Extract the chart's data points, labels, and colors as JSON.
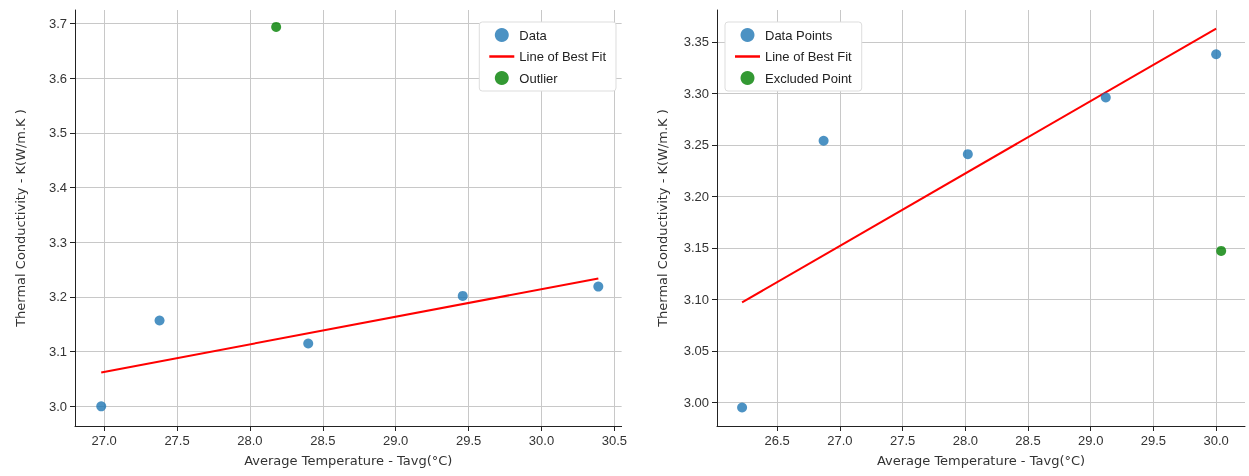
{
  "chart_data": [
    {
      "type": "scatter",
      "xlabel": "Average Temperature - Tavg(°C)",
      "ylabel": "Thermal Conductivity - K(W/m.K )",
      "xlim": [
        26.8,
        30.55
      ],
      "ylim": [
        2.964,
        3.725
      ],
      "xticks": [
        {
          "value": 27,
          "label": "27.0"
        },
        {
          "value": 27.5,
          "label": "27.5"
        },
        {
          "value": 28,
          "label": "28.0"
        },
        {
          "value": 28.5,
          "label": "28.5"
        },
        {
          "value": 29,
          "label": "29.0"
        },
        {
          "value": 29.5,
          "label": "29.5"
        },
        {
          "value": 30,
          "label": "30.0"
        },
        {
          "value": 30.5,
          "label": "30.5"
        }
      ],
      "yticks": [
        {
          "value": 3,
          "label": "3.0"
        },
        3.1,
        3.2,
        3.3,
        3.4,
        3.5,
        3.6,
        3.7
      ],
      "grid": true,
      "legend": "top right",
      "marker": "circle",
      "series": [
        {
          "name": "Data",
          "color": "#1f77b4",
          "x": [
            26.98,
            27.38,
            28.4,
            29.46,
            30.39
          ],
          "values": [
            3.0,
            3.157,
            3.115,
            3.202,
            3.219
          ]
        },
        {
          "name": "Line of Best Fit",
          "type": "line",
          "marker": "none",
          "color": "#ff0000",
          "x": [
            26.98,
            30.39
          ],
          "values": [
            3.062,
            3.234
          ]
        },
        {
          "name": "Outlier",
          "color": "#008000",
          "x": [
            28.18
          ],
          "values": [
            3.694
          ]
        }
      ]
    },
    {
      "type": "scatter",
      "xlabel": "Average Temperature - Tavg(°C)",
      "ylabel": "Thermal Conductivity - K(W/m.K )",
      "xlim": [
        26.02,
        30.23
      ],
      "ylim": [
        2.977,
        3.381
      ],
      "xticks": [
        26.5,
        {
          "value": 27,
          "label": "27.0"
        },
        27.5,
        {
          "value": 28,
          "label": "28.0"
        },
        28.5,
        {
          "value": 29,
          "label": "29.0"
        },
        29.5,
        {
          "value": 30,
          "label": "30.0"
        }
      ],
      "yticks": [
        {
          "value": 3,
          "label": "3.00"
        },
        3.05,
        {
          "value": 3.1,
          "label": "3.10"
        },
        3.15,
        {
          "value": 3.2,
          "label": "3.20"
        },
        3.25,
        {
          "value": 3.3,
          "label": "3.30"
        },
        3.35
      ],
      "grid": true,
      "legend": "top left",
      "marker": "circle",
      "series": [
        {
          "name": "Data Points",
          "color": "#1f77b4",
          "x": [
            26.22,
            26.87,
            28.02,
            29.12,
            30.0
          ],
          "values": [
            2.995,
            3.254,
            3.241,
            3.296,
            3.338
          ]
        },
        {
          "name": "Line of Best Fit",
          "type": "line",
          "marker": "none",
          "color": "#ff0000",
          "x": [
            26.22,
            30.0
          ],
          "values": [
            3.097,
            3.363
          ]
        },
        {
          "name": "Excluded Point",
          "color": "#008000",
          "x": [
            30.04
          ],
          "values": [
            3.147
          ]
        }
      ]
    }
  ]
}
